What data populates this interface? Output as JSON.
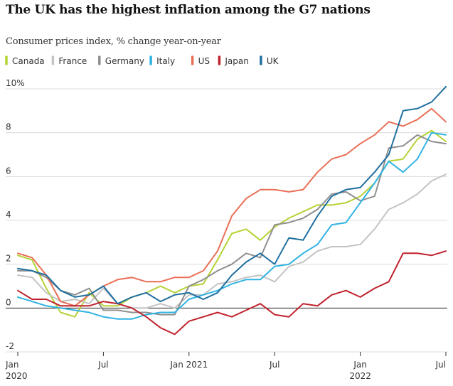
{
  "title": "The UK has the highest inflation among the G7 nations",
  "subtitle": "Consumer prices index, % change year-on-year",
  "chart_data": {
    "type": "line",
    "title": "The UK has the highest inflation among the G7 nations",
    "subtitle": "Consumer prices index, % change year-on-year",
    "x": [
      "2020-01",
      "2020-02",
      "2020-03",
      "2020-04",
      "2020-05",
      "2020-06",
      "2020-07",
      "2020-08",
      "2020-09",
      "2020-10",
      "2020-11",
      "2020-12",
      "2021-01",
      "2021-02",
      "2021-03",
      "2021-04",
      "2021-05",
      "2021-06",
      "2021-07",
      "2021-08",
      "2021-09",
      "2021-10",
      "2021-11",
      "2021-12",
      "2022-01",
      "2022-02",
      "2022-03",
      "2022-04",
      "2022-05",
      "2022-06",
      "2022-07"
    ],
    "ylim": [
      -2,
      10
    ],
    "y_ticks": [
      {
        "value": 10,
        "label": "10%"
      },
      {
        "value": 8,
        "label": "8"
      },
      {
        "value": 6,
        "label": "6"
      },
      {
        "value": 4,
        "label": "4"
      },
      {
        "value": 2,
        "label": "2"
      },
      {
        "value": 0,
        "label": "0"
      },
      {
        "value": -2,
        "label": "-2"
      }
    ],
    "x_ticks": [
      {
        "x": "2020-01",
        "label": "Jan",
        "sublabel": "2020"
      },
      {
        "x": "2020-07",
        "label": "Jul",
        "sublabel": ""
      },
      {
        "x": "2021-01",
        "label": "Jan 2021",
        "sublabel": ""
      },
      {
        "x": "2021-07",
        "label": "Jul",
        "sublabel": ""
      },
      {
        "x": "2022-01",
        "label": "Jan",
        "sublabel": "2022"
      },
      {
        "x": "2022-07",
        "label": "Jul",
        "sublabel": ""
      }
    ],
    "grid": true,
    "legend_position": "top-left",
    "series": [
      {
        "name": "Canada",
        "color": "#b4d335",
        "values": [
          2.4,
          2.2,
          0.9,
          -0.2,
          -0.4,
          0.7,
          0.1,
          0.1,
          0.5,
          0.7,
          1.0,
          0.7,
          1.0,
          1.1,
          2.2,
          3.4,
          3.6,
          3.1,
          3.7,
          4.1,
          4.4,
          4.7,
          4.7,
          4.8,
          5.1,
          5.7,
          6.7,
          6.8,
          7.7,
          8.1,
          7.6
        ]
      },
      {
        "name": "France",
        "color": "#c4c4c4",
        "values": [
          1.5,
          1.4,
          0.7,
          0.3,
          0.4,
          0.2,
          0.9,
          0.2,
          0.0,
          0.0,
          0.2,
          0.0,
          0.6,
          0.6,
          1.1,
          1.2,
          1.4,
          1.5,
          1.2,
          1.9,
          2.1,
          2.6,
          2.8,
          2.8,
          2.9,
          3.6,
          4.5,
          4.8,
          5.2,
          5.8,
          6.1
        ]
      },
      {
        "name": "Germany",
        "color": "#8f8f8f",
        "values": [
          1.7,
          1.7,
          1.4,
          0.8,
          0.6,
          0.9,
          -0.1,
          -0.1,
          -0.2,
          -0.2,
          -0.3,
          -0.3,
          1.0,
          1.3,
          1.7,
          2.0,
          2.5,
          2.3,
          3.8,
          3.9,
          4.1,
          4.5,
          5.2,
          5.3,
          4.9,
          5.1,
          7.3,
          7.4,
          7.9,
          7.6,
          7.5
        ]
      },
      {
        "name": "Italy",
        "color": "#2fb3e3",
        "values": [
          0.5,
          0.3,
          0.1,
          0.0,
          -0.1,
          -0.2,
          -0.4,
          -0.5,
          -0.5,
          -0.3,
          -0.2,
          -0.2,
          0.4,
          0.6,
          0.8,
          1.1,
          1.3,
          1.3,
          1.9,
          2.0,
          2.5,
          2.9,
          3.8,
          3.9,
          4.8,
          5.7,
          6.7,
          6.2,
          6.8,
          8.0,
          7.9
        ]
      },
      {
        "name": "US",
        "color": "#ea6e55",
        "values": [
          2.5,
          2.3,
          1.5,
          0.3,
          0.1,
          0.6,
          1.0,
          1.3,
          1.4,
          1.2,
          1.2,
          1.4,
          1.4,
          1.7,
          2.6,
          4.2,
          5.0,
          5.4,
          5.4,
          5.3,
          5.4,
          6.2,
          6.8,
          7.0,
          7.5,
          7.9,
          8.5,
          8.3,
          8.6,
          9.1,
          8.5
        ]
      },
      {
        "name": "Japan",
        "color": "#c0222d",
        "values": [
          0.8,
          0.4,
          0.4,
          0.1,
          0.1,
          0.1,
          0.3,
          0.2,
          0.0,
          -0.4,
          -0.9,
          -1.2,
          -0.6,
          -0.4,
          -0.2,
          -0.4,
          -0.1,
          0.2,
          -0.3,
          -0.4,
          0.2,
          0.1,
          0.6,
          0.8,
          0.5,
          0.9,
          1.2,
          2.5,
          2.5,
          2.4,
          2.6
        ]
      },
      {
        "name": "UK",
        "color": "#1f6f9f",
        "values": [
          1.8,
          1.7,
          1.5,
          0.8,
          0.5,
          0.6,
          1.0,
          0.2,
          0.5,
          0.7,
          0.3,
          0.6,
          0.7,
          0.4,
          0.7,
          1.5,
          2.1,
          2.5,
          2.0,
          3.2,
          3.1,
          4.2,
          5.1,
          5.4,
          5.5,
          6.2,
          7.0,
          9.0,
          9.1,
          9.4,
          10.1
        ]
      }
    ]
  }
}
